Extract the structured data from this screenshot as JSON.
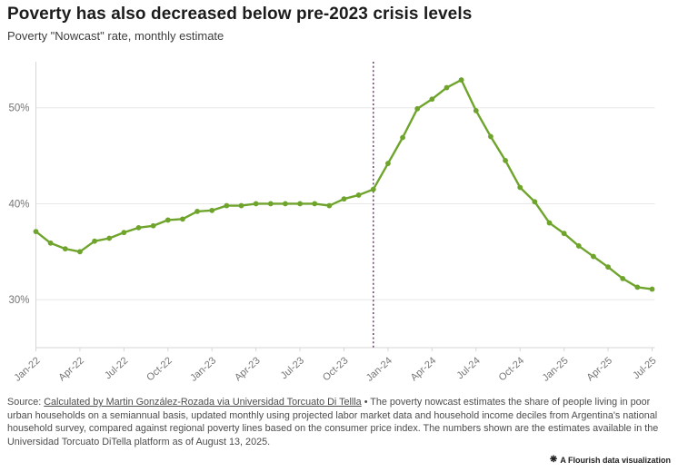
{
  "header": {
    "title": "Poverty has also decreased below pre-2023 crisis levels",
    "subtitle": "Poverty \"Nowcast\" rate, monthly estimate"
  },
  "chart_data": {
    "type": "line",
    "title": "Poverty Nowcast rate, monthly estimate",
    "x": [
      "Jan-22",
      "Feb-22",
      "Mar-22",
      "Apr-22",
      "May-22",
      "Jun-22",
      "Jul-22",
      "Aug-22",
      "Sep-22",
      "Oct-22",
      "Nov-22",
      "Dec-22",
      "Jan-23",
      "Feb-23",
      "Mar-23",
      "Apr-23",
      "May-23",
      "Jun-23",
      "Jul-23",
      "Aug-23",
      "Sep-23",
      "Oct-23",
      "Nov-23",
      "Dec-23",
      "Jan-24",
      "Feb-24",
      "Mar-24",
      "Apr-24",
      "May-24",
      "Jun-24",
      "Jul-24",
      "Aug-24",
      "Sep-24",
      "Oct-24",
      "Nov-24",
      "Dec-24",
      "Jan-25",
      "Feb-25",
      "Mar-25",
      "Apr-25",
      "May-25",
      "Jun-25",
      "Jul-25"
    ],
    "series": [
      {
        "name": "Poverty nowcast rate (%)",
        "color": "#6fa42c",
        "values": [
          37.1,
          35.9,
          35.3,
          35.0,
          36.1,
          36.4,
          37.0,
          37.5,
          37.7,
          38.3,
          38.4,
          39.2,
          39.3,
          39.8,
          39.8,
          40.0,
          40.0,
          40.0,
          40.0,
          40.0,
          39.8,
          40.5,
          40.9,
          41.5,
          44.2,
          46.9,
          49.9,
          50.9,
          52.1,
          52.9,
          49.7,
          47.0,
          44.5,
          41.7,
          40.2,
          38.0,
          36.9,
          35.6,
          34.5,
          33.4,
          32.2,
          31.3,
          31.1
        ]
      }
    ],
    "x_tick_every": 3,
    "x_tick_labels": [
      "Jan-22",
      "Apr-22",
      "Jul-22",
      "Oct-22",
      "Jan-23",
      "Apr-23",
      "Jul-23",
      "Oct-23",
      "Jan-24",
      "Apr-24",
      "Jul-24",
      "Oct-24",
      "Jan-25",
      "Apr-25",
      "Jul-25"
    ],
    "y_ticks": [
      {
        "value": 30,
        "label": "30%"
      },
      {
        "value": 40,
        "label": "40%"
      },
      {
        "value": 50,
        "label": "50%"
      }
    ],
    "ylim": [
      25,
      54.8
    ],
    "grid": true,
    "legend_position": "none",
    "annotation_line": {
      "x_label": "Dec-23",
      "x_index": 23,
      "color": "#5c3a57",
      "style": "dotted"
    },
    "grid_color": "#e8e8e8",
    "axis_color": "#d6d6d6",
    "tick_label_color": "#757575"
  },
  "footer": {
    "source_prefix": "Source: ",
    "source_link": "Calculated by Martin González-Rozada via Universidad Torcuato Di Tellla",
    "separator": " • ",
    "description": "The poverty nowcast estimates the share of people living in poor urban households on a semiannual basis, updated monthly using projected labor market data and household income deciles from Argentina's national household survey, compared against regional poverty lines based on the consumer price index. The numbers shown are the estimates available in the Universidad Torcuato DiTella platform as of August 13, 2025.",
    "flourish_icon": "❋",
    "flourish_label": "A Flourish data visualization"
  }
}
